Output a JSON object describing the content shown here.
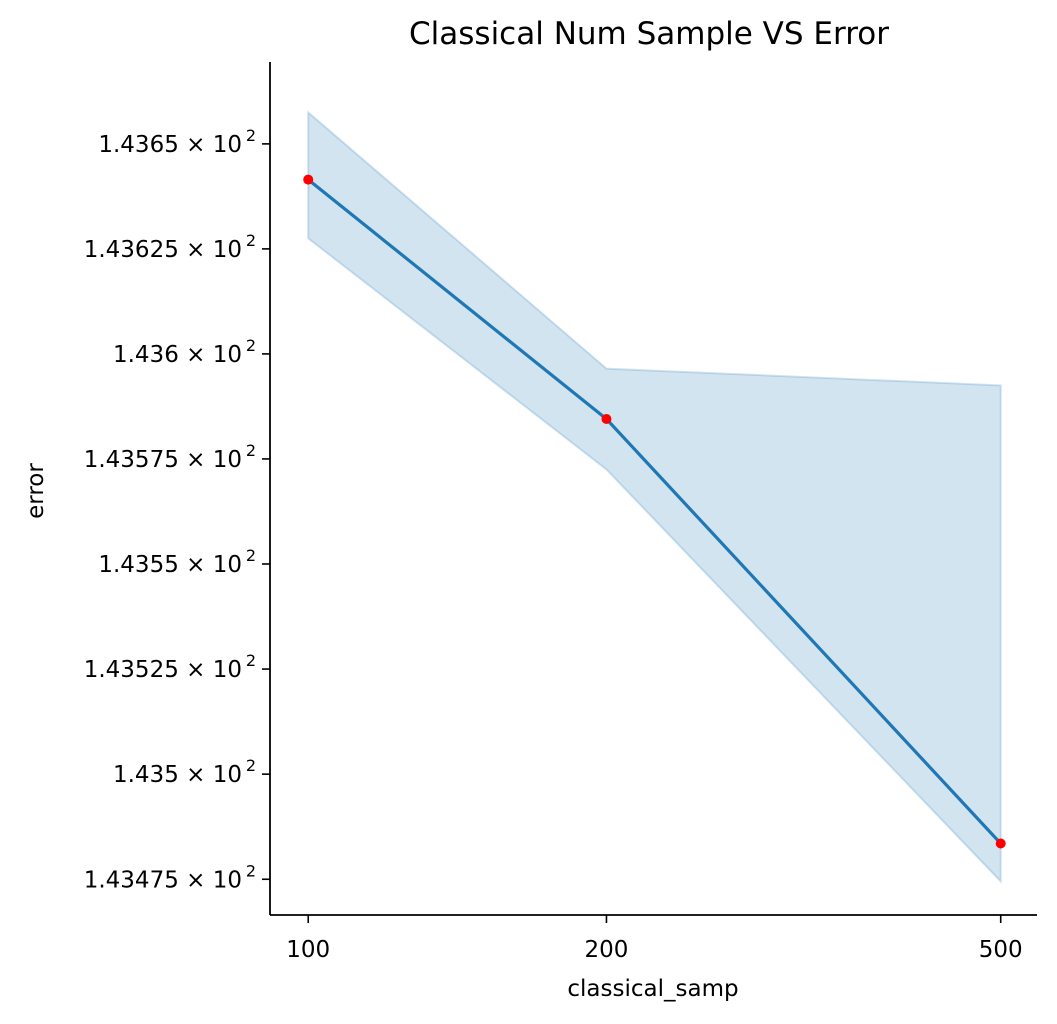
{
  "chart_data": {
    "type": "line",
    "title": "Classical Num Sample VS Error",
    "xlabel": "classical_samp",
    "ylabel": "error",
    "x_scale": "log",
    "y_scale": "log",
    "xlim": [
      91.5,
      544
    ],
    "ylim": [
      1.434665,
      1.436695
    ],
    "x_ticks": [
      {
        "value": 100,
        "label": "100"
      },
      {
        "value": 200,
        "label": "200"
      },
      {
        "value": 500,
        "label": "500"
      }
    ],
    "y_ticks": [
      {
        "value": 1.43475,
        "mantissa": "1.43475"
      },
      {
        "value": 1.435,
        "mantissa": "1.435"
      },
      {
        "value": 1.43525,
        "mantissa": "1.43525"
      },
      {
        "value": 1.4355,
        "mantissa": "1.4355"
      },
      {
        "value": 1.43575,
        "mantissa": "1.43575"
      },
      {
        "value": 1.436,
        "mantissa": "1.436"
      },
      {
        "value": 1.43625,
        "mantissa": "1.43625"
      },
      {
        "value": 1.4365,
        "mantissa": "1.4365"
      }
    ],
    "y_tick_multiplier": "× 10",
    "y_tick_exponent": "2",
    "series": [
      {
        "x": [
          100,
          200,
          500
        ],
        "y": [
          1.436415,
          1.435845,
          1.434835
        ],
        "ci_upper": [
          1.436575,
          1.435965,
          1.435925
        ],
        "ci_lower": [
          1.436275,
          1.435725,
          1.434745
        ],
        "line_color": "#1f77b4",
        "marker_color": "#ff0000",
        "band_color": "#1f77b4"
      }
    ],
    "grid": false,
    "legend": "none"
  }
}
